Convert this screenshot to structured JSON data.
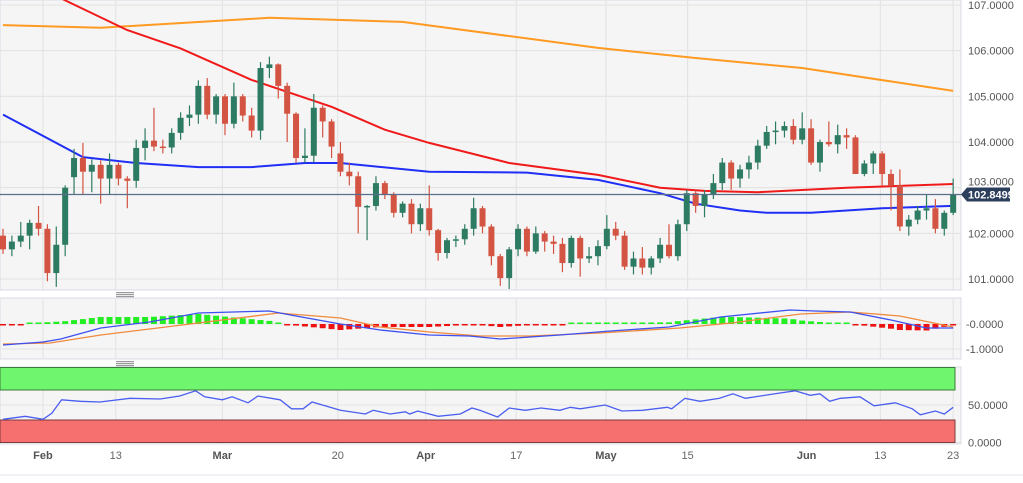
{
  "colors": {
    "bull": "#2e7b64",
    "bear": "#d45443",
    "sma50": "#1f2ff5",
    "sma100": "#f01a1a",
    "sma200": "#ff9a22",
    "macd": "#3d50f0",
    "signal": "#f08a3c",
    "hist_pos": "#22ee22",
    "hist_neg": "#ee1111",
    "rsi": "#4a5ef0",
    "overbought": "#70f56e",
    "oversold": "#f77070",
    "price_badge": "#2b3f5c"
  },
  "chart_data": {
    "type": "candlestick",
    "title": "",
    "current_price": 102.8499,
    "current_price_label": "102.8499",
    "price_axis": {
      "ylim": [
        100.75,
        107.1
      ],
      "ticks": [
        107,
        106,
        105,
        104,
        103,
        102,
        101
      ],
      "tick_labels": [
        "107.0000",
        "106.0000",
        "105.0000",
        "104.0000",
        "103.0000",
        "102.0000",
        "101.0000"
      ]
    },
    "date_ticks": [
      {
        "index": 4.5,
        "label": "Feb",
        "month": true
      },
      {
        "index": 12.7,
        "label": "13",
        "month": false
      },
      {
        "index": 24.7,
        "label": "Mar",
        "month": true
      },
      {
        "index": 37.7,
        "label": "20",
        "month": false
      },
      {
        "index": 47.6,
        "label": "Apr",
        "month": true
      },
      {
        "index": 57.8,
        "label": "17",
        "month": false
      },
      {
        "index": 67.9,
        "label": "May",
        "month": true
      },
      {
        "index": 77.1,
        "label": "15",
        "month": false
      },
      {
        "index": 90.5,
        "label": "Jun",
        "month": true
      },
      {
        "index": 98.8,
        "label": "13",
        "month": false
      },
      {
        "index": 107,
        "label": "23",
        "month": false
      }
    ],
    "candles_ohlc": [
      [
        101.95,
        102.1,
        101.55,
        101.65
      ],
      [
        101.65,
        101.95,
        101.5,
        101.82
      ],
      [
        101.82,
        102.25,
        101.7,
        101.95
      ],
      [
        101.95,
        102.3,
        101.65,
        102.23
      ],
      [
        102.23,
        102.6,
        101.95,
        102.1
      ],
      [
        102.1,
        102.2,
        100.95,
        101.13
      ],
      [
        101.13,
        102.15,
        100.83,
        101.75
      ],
      [
        101.75,
        103.05,
        101.5,
        103.0
      ],
      [
        103.23,
        103.85,
        102.85,
        103.65
      ],
      [
        103.65,
        103.98,
        102.85,
        103.35
      ],
      [
        103.35,
        103.62,
        102.9,
        103.5
      ],
      [
        103.5,
        103.6,
        102.65,
        103.2
      ],
      [
        103.2,
        103.75,
        102.85,
        103.5
      ],
      [
        103.5,
        103.55,
        103.05,
        103.2
      ],
      [
        103.2,
        103.25,
        102.55,
        103.15
      ],
      [
        103.15,
        104.05,
        103.0,
        103.87
      ],
      [
        103.87,
        104.3,
        103.6,
        104.03
      ],
      [
        104.03,
        104.75,
        103.8,
        103.9
      ],
      [
        103.9,
        104.05,
        103.75,
        103.88
      ],
      [
        103.88,
        104.3,
        103.75,
        104.2
      ],
      [
        104.2,
        104.65,
        104.05,
        104.53
      ],
      [
        104.53,
        104.8,
        104.35,
        104.6
      ],
      [
        104.6,
        105.35,
        104.4,
        105.23
      ],
      [
        105.23,
        105.4,
        104.5,
        104.6
      ],
      [
        104.6,
        105.05,
        104.4,
        105.0
      ],
      [
        105.0,
        105.05,
        104.15,
        104.4
      ],
      [
        104.4,
        105.3,
        104.3,
        105.0
      ],
      [
        105.0,
        105.05,
        104.45,
        104.58
      ],
      [
        104.58,
        104.75,
        104.1,
        104.25
      ],
      [
        104.25,
        105.75,
        104.05,
        105.62
      ],
      [
        105.62,
        105.87,
        105.4,
        105.7
      ],
      [
        105.7,
        105.72,
        104.95,
        105.23
      ],
      [
        105.23,
        105.3,
        104.0,
        104.62
      ],
      [
        104.62,
        104.65,
        103.55,
        103.65
      ],
      [
        103.65,
        104.3,
        103.55,
        103.7
      ],
      [
        103.7,
        105.05,
        103.55,
        104.75
      ],
      [
        104.75,
        104.8,
        104.1,
        104.45
      ],
      [
        104.45,
        104.5,
        103.65,
        103.9
      ],
      [
        103.75,
        104.0,
        103.25,
        103.35
      ],
      [
        103.35,
        103.55,
        103.05,
        103.25
      ],
      [
        103.25,
        103.35,
        102.0,
        102.58
      ],
      [
        102.58,
        102.62,
        101.85,
        102.6
      ],
      [
        102.6,
        103.25,
        102.5,
        103.1
      ],
      [
        103.1,
        103.15,
        102.75,
        102.85
      ],
      [
        102.85,
        102.9,
        102.35,
        102.45
      ],
      [
        102.45,
        102.7,
        102.35,
        102.65
      ],
      [
        102.65,
        102.75,
        102.0,
        102.2
      ],
      [
        102.2,
        102.65,
        102.05,
        102.55
      ],
      [
        102.55,
        103.05,
        101.95,
        102.07
      ],
      [
        102.07,
        102.1,
        101.4,
        101.57
      ],
      [
        101.57,
        101.9,
        101.45,
        101.85
      ],
      [
        101.85,
        101.95,
        101.7,
        101.87
      ],
      [
        101.87,
        102.2,
        101.75,
        102.1
      ],
      [
        102.1,
        102.78,
        101.95,
        102.55
      ],
      [
        102.55,
        102.6,
        102.0,
        102.15
      ],
      [
        102.15,
        102.2,
        101.3,
        101.5
      ],
      [
        101.5,
        101.55,
        100.85,
        101.02
      ],
      [
        101.02,
        101.7,
        100.78,
        101.65
      ],
      [
        101.65,
        102.2,
        101.5,
        102.1
      ],
      [
        102.1,
        102.15,
        101.5,
        101.6
      ],
      [
        101.6,
        102.15,
        101.55,
        102.0
      ],
      [
        102.0,
        102.05,
        101.6,
        101.82
      ],
      [
        101.82,
        101.95,
        101.55,
        101.77
      ],
      [
        101.77,
        101.9,
        101.15,
        101.35
      ],
      [
        101.35,
        101.95,
        101.25,
        101.9
      ],
      [
        101.9,
        101.95,
        101.05,
        101.45
      ],
      [
        101.45,
        101.7,
        101.35,
        101.5
      ],
      [
        101.5,
        101.85,
        101.3,
        101.72
      ],
      [
        101.72,
        102.4,
        101.65,
        102.1
      ],
      [
        102.1,
        102.25,
        101.85,
        101.95
      ],
      [
        101.95,
        102.05,
        101.2,
        101.27
      ],
      [
        101.27,
        101.6,
        101.1,
        101.45
      ],
      [
        101.45,
        101.7,
        101.1,
        101.25
      ],
      [
        101.25,
        101.5,
        101.1,
        101.45
      ],
      [
        101.45,
        101.9,
        101.35,
        101.75
      ],
      [
        101.75,
        102.2,
        101.45,
        101.5
      ],
      [
        101.5,
        102.3,
        101.4,
        102.2
      ],
      [
        102.2,
        102.95,
        102.05,
        102.88
      ],
      [
        102.88,
        102.95,
        102.45,
        102.6
      ],
      [
        102.6,
        102.95,
        102.35,
        102.85
      ],
      [
        102.85,
        103.3,
        102.75,
        103.1
      ],
      [
        103.1,
        103.65,
        102.95,
        103.55
      ],
      [
        103.55,
        103.6,
        102.95,
        103.2
      ],
      [
        103.2,
        103.5,
        103.0,
        103.4
      ],
      [
        103.4,
        103.7,
        103.2,
        103.55
      ],
      [
        103.55,
        104.05,
        103.4,
        103.92
      ],
      [
        103.92,
        104.35,
        103.85,
        104.22
      ],
      [
        104.22,
        104.45,
        103.95,
        104.25
      ],
      [
        104.25,
        104.45,
        104.1,
        104.35
      ],
      [
        104.35,
        104.5,
        103.95,
        104.05
      ],
      [
        104.05,
        104.65,
        103.95,
        104.3
      ],
      [
        104.3,
        104.5,
        103.5,
        103.55
      ],
      [
        103.55,
        104.05,
        103.35,
        104.0
      ],
      [
        104.0,
        104.45,
        103.9,
        103.95
      ],
      [
        103.95,
        104.38,
        103.75,
        104.15
      ],
      [
        104.15,
        104.3,
        103.85,
        104.1
      ],
      [
        104.1,
        104.15,
        103.3,
        103.3
      ],
      [
        103.3,
        103.6,
        103.25,
        103.53
      ],
      [
        103.53,
        103.8,
        103.3,
        103.75
      ],
      [
        103.75,
        103.8,
        103.05,
        103.3
      ],
      [
        103.3,
        103.4,
        102.5,
        103.05
      ],
      [
        103.05,
        103.4,
        102.05,
        102.15
      ],
      [
        102.15,
        102.4,
        101.95,
        102.3
      ],
      [
        102.3,
        102.6,
        102.2,
        102.5
      ],
      [
        102.5,
        102.85,
        102.3,
        102.55
      ],
      [
        102.55,
        102.75,
        102.0,
        102.1
      ],
      [
        102.1,
        102.5,
        101.95,
        102.45
      ],
      [
        102.45,
        103.2,
        102.4,
        102.85
      ]
    ],
    "moving_averages": {
      "sma50": [
        [
          0,
          104.6
        ],
        [
          9,
          103.67
        ],
        [
          15,
          103.54
        ],
        [
          22,
          103.45
        ],
        [
          28,
          103.45
        ],
        [
          34,
          103.54
        ],
        [
          38,
          103.54
        ],
        [
          48,
          103.35
        ],
        [
          59,
          103.33
        ],
        [
          67,
          103.17
        ],
        [
          74,
          102.88
        ],
        [
          78,
          102.65
        ],
        [
          83,
          102.5
        ],
        [
          86,
          102.45
        ],
        [
          91,
          102.45
        ],
        [
          99,
          102.55
        ],
        [
          107,
          102.6
        ]
      ],
      "sma100": [
        [
          5,
          107.3
        ],
        [
          7,
          107.1
        ],
        [
          14,
          106.45
        ],
        [
          20,
          106.05
        ],
        [
          28,
          105.36
        ],
        [
          37,
          104.77
        ],
        [
          43,
          104.27
        ],
        [
          48,
          103.98
        ],
        [
          57,
          103.54
        ],
        [
          67,
          103.28
        ],
        [
          74,
          103.0
        ],
        [
          79,
          102.93
        ],
        [
          85,
          102.9
        ],
        [
          95,
          103.0
        ],
        [
          107,
          103.08
        ]
      ],
      "sma200": [
        [
          0,
          106.56
        ],
        [
          11,
          106.5
        ],
        [
          30,
          106.72
        ],
        [
          45,
          106.63
        ],
        [
          67,
          106.06
        ],
        [
          78,
          105.84
        ],
        [
          90,
          105.62
        ],
        [
          107,
          105.12
        ]
      ]
    },
    "macd": {
      "axis_ticks": [
        0,
        -1
      ],
      "tick_labels": [
        "-0.0000",
        "-1.0000"
      ],
      "macd_line": [
        [
          0,
          -0.84
        ],
        [
          4.5,
          -0.72
        ],
        [
          6.5,
          -0.6
        ],
        [
          11,
          -0.16
        ],
        [
          16.5,
          0.08
        ],
        [
          22,
          0.44
        ],
        [
          30,
          0.52
        ],
        [
          33,
          0.32
        ],
        [
          38,
          0.0
        ],
        [
          42.5,
          -0.24
        ],
        [
          48,
          -0.44
        ],
        [
          52.5,
          -0.48
        ],
        [
          56,
          -0.6
        ],
        [
          62.7,
          -0.44
        ],
        [
          68.4,
          -0.28
        ],
        [
          75,
          -0.12
        ],
        [
          80.8,
          0.28
        ],
        [
          88.6,
          0.56
        ],
        [
          91.4,
          0.52
        ],
        [
          95.4,
          0.48
        ],
        [
          100,
          0.16
        ],
        [
          104,
          -0.16
        ],
        [
          107,
          -0.16
        ]
      ],
      "signal_line": [
        [
          0,
          -0.8
        ],
        [
          5.3,
          -0.76
        ],
        [
          11,
          -0.44
        ],
        [
          16.5,
          -0.2
        ],
        [
          22,
          0.04
        ],
        [
          31,
          0.44
        ],
        [
          38,
          0.24
        ],
        [
          42.5,
          -0.12
        ],
        [
          48,
          -0.32
        ],
        [
          53.7,
          -0.48
        ],
        [
          59.4,
          -0.48
        ],
        [
          67.2,
          -0.36
        ],
        [
          76.2,
          -0.16
        ],
        [
          82,
          0.04
        ],
        [
          89.8,
          0.4
        ],
        [
          95.4,
          0.48
        ],
        [
          101,
          0.32
        ],
        [
          107,
          -0.12
        ]
      ]
    },
    "rsi": {
      "axis_ticks": [
        50,
        0
      ],
      "tick_labels": [
        "50.0000",
        "0.0000"
      ],
      "overbought": 70,
      "oversold": 30,
      "values": [
        [
          0,
          31
        ],
        [
          2.5,
          35
        ],
        [
          4.5,
          31
        ],
        [
          5.5,
          39
        ],
        [
          6.6,
          57
        ],
        [
          8.7,
          55
        ],
        [
          10.9,
          54
        ],
        [
          14.3,
          59
        ],
        [
          17.7,
          58
        ],
        [
          19.9,
          62
        ],
        [
          21.7,
          69
        ],
        [
          22.7,
          61
        ],
        [
          24.7,
          57
        ],
        [
          25.8,
          61
        ],
        [
          27.6,
          53
        ],
        [
          28.7,
          62
        ],
        [
          31.2,
          57
        ],
        [
          32.5,
          45
        ],
        [
          33.8,
          45
        ],
        [
          34.8,
          54
        ],
        [
          38,
          43
        ],
        [
          40.8,
          38
        ],
        [
          41.7,
          43
        ],
        [
          43.6,
          38
        ],
        [
          45.3,
          41
        ],
        [
          45.8,
          38
        ],
        [
          46.7,
          42
        ],
        [
          49,
          35
        ],
        [
          51.5,
          38
        ],
        [
          52.8,
          46
        ],
        [
          53.7,
          43
        ],
        [
          55.7,
          34
        ],
        [
          57,
          46
        ],
        [
          58.8,
          43
        ],
        [
          60.6,
          46
        ],
        [
          62.7,
          43
        ],
        [
          63.9,
          47
        ],
        [
          65,
          45
        ],
        [
          67.8,
          50
        ],
        [
          69.7,
          42
        ],
        [
          72,
          43
        ],
        [
          74.8,
          47
        ],
        [
          75.3,
          45
        ],
        [
          76.8,
          59
        ],
        [
          78.5,
          55
        ],
        [
          80.7,
          59
        ],
        [
          82.2,
          65
        ],
        [
          83.6,
          59
        ],
        [
          87.5,
          66
        ],
        [
          89.2,
          69
        ],
        [
          90.9,
          63
        ],
        [
          92,
          65
        ],
        [
          93.1,
          55
        ],
        [
          94.3,
          59
        ],
        [
          96.5,
          61
        ],
        [
          98.1,
          49
        ],
        [
          100.5,
          53
        ],
        [
          102.4,
          45
        ],
        [
          103.3,
          37
        ],
        [
          105,
          42
        ],
        [
          106,
          38
        ],
        [
          107,
          47
        ]
      ]
    }
  }
}
